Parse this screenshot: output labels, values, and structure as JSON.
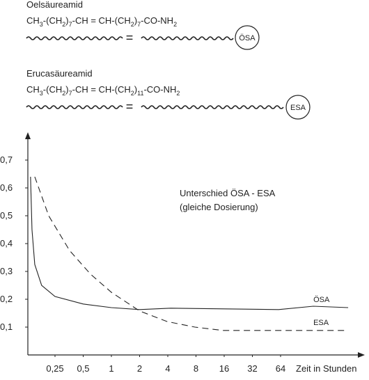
{
  "molecules": [
    {
      "name": "Oelsäureamid",
      "formula": [
        {
          "base": "CH",
          "sub": "3"
        },
        {
          "base": "-(CH",
          "sub": "2"
        },
        {
          "base": ")",
          "sub": "7"
        },
        {
          "base": "-CH = CH-(CH",
          "sub": "2"
        },
        {
          "base": ")",
          "sub": "7"
        },
        {
          "base": "-CO-NH",
          "sub": "2"
        }
      ],
      "equals": "=",
      "label": "ÖSA"
    },
    {
      "name": "Erucasäureamid",
      "formula": [
        {
          "base": "CH",
          "sub": "3"
        },
        {
          "base": "-(CH",
          "sub": "2"
        },
        {
          "base": ")",
          "sub": "7"
        },
        {
          "base": "-CH = CH-(CH",
          "sub": "2"
        },
        {
          "base": ")",
          "sub": "11"
        },
        {
          "base": "-CO-NH",
          "sub": "2"
        }
      ],
      "equals": "=",
      "label": "ESA"
    }
  ],
  "chart_data": {
    "type": "line",
    "x_label": "Zeit in Stunden",
    "annotations": [
      "Unterschied ÖSA - ESA",
      "(gleiche Dosierung)"
    ],
    "xscale": "log",
    "xlim": [
      0.125,
      512
    ],
    "xticks": [
      {
        "value": 0.25,
        "label": "0,25"
      },
      {
        "value": 0.5,
        "label": "0,5"
      },
      1,
      2,
      4,
      8,
      16,
      32,
      64
    ],
    "ylim": [
      0,
      0.8
    ],
    "yticks": [
      {
        "value": 0.1,
        "label": "0,1"
      },
      {
        "value": 0.2,
        "label": "0,2"
      },
      {
        "value": 0.3,
        "label": "0,3"
      },
      {
        "value": 0.4,
        "label": "0,4"
      },
      {
        "value": 0.5,
        "label": "0,5"
      },
      {
        "value": 0.6,
        "label": "0,6"
      },
      {
        "value": 0.7,
        "label": "0,7"
      }
    ],
    "series": [
      {
        "name": "ÖSA",
        "color": "#222222",
        "style": "solid",
        "x": [
          0.137,
          0.142,
          0.152,
          0.18,
          0.25,
          0.5,
          1,
          2,
          4.3,
          61,
          143,
          337
        ],
        "values": [
          0.64,
          0.45,
          0.325,
          0.25,
          0.21,
          0.183,
          0.17,
          0.163,
          0.168,
          0.163,
          0.175,
          0.17
        ]
      },
      {
        "name": "ESA",
        "color": "#222222",
        "style": "dashed",
        "x": [
          0.152,
          0.214,
          0.358,
          0.6,
          1,
          2,
          3.93,
          7.8,
          15.5,
          337
        ],
        "values": [
          0.64,
          0.5,
          0.375,
          0.29,
          0.225,
          0.158,
          0.12,
          0.1,
          0.088,
          0.088
        ]
      }
    ]
  }
}
